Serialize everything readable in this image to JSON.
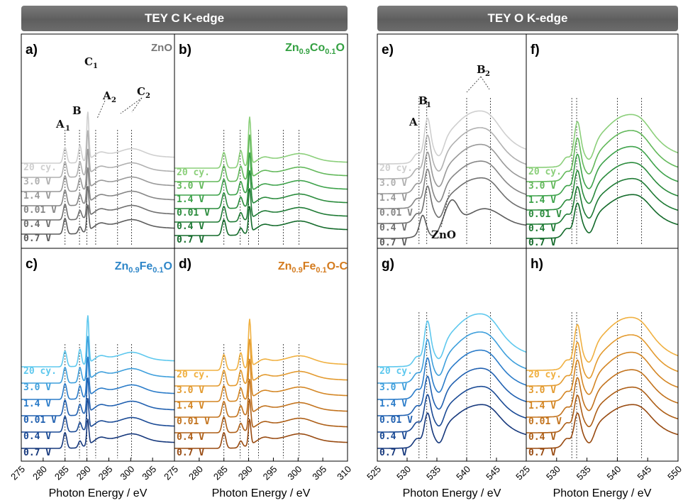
{
  "headers": {
    "left": "TEY C K-edge",
    "right": "TEY O K-edge"
  },
  "colors": {
    "grey": [
      "#cfcfcf",
      "#b0b0b0",
      "#999999",
      "#868686",
      "#6f6f6f",
      "#5c5c5c"
    ],
    "green": [
      "#8bcf7a",
      "#62b85a",
      "#3da24a",
      "#2a8b3c",
      "#1e7a34",
      "#136a2a"
    ],
    "blue": [
      "#5ec8ee",
      "#3e9fdc",
      "#2b7cc9",
      "#2060b0",
      "#1a4a95",
      "#16387c"
    ],
    "orange": [
      "#f0b040",
      "#e39a2e",
      "#d48624",
      "#c2721c",
      "#ad5e16",
      "#984a10"
    ],
    "title_green": "#33a041",
    "title_blue": "#2e86c8",
    "title_orange": "#d47b1e"
  },
  "axes": {
    "c_ticks": [
      "275",
      "280",
      "285",
      "290",
      "295",
      "300",
      "305"
    ],
    "c_ticks_last": [
      "275",
      "280",
      "285",
      "290",
      "295",
      "300",
      "305",
      "310"
    ],
    "o_ticks": [
      "525",
      "530",
      "535",
      "540",
      "545"
    ],
    "o_ticks_last": [
      "525",
      "530",
      "535",
      "540",
      "545",
      "550"
    ],
    "xlabel": "Photon Energy / eV"
  },
  "chart_data": [
    {
      "type": "line",
      "panel": "a)",
      "title": "ZnO",
      "xlim": [
        275,
        310
      ],
      "series": [
        {
          "name": "20 cy."
        },
        {
          "name": "3.0 V"
        },
        {
          "name": "1.4 V"
        },
        {
          "name": "0.01 V"
        },
        {
          "name": "0.4 V"
        },
        {
          "name": "0.7 V"
        }
      ],
      "annotations": [
        "A",
        "1",
        "B",
        "C",
        "1",
        "A",
        "2",
        "C",
        "2"
      ],
      "reference_lines_x": [
        285,
        288.3,
        290,
        292,
        297,
        300.2
      ]
    },
    {
      "type": "line",
      "panel": "b)",
      "title": "Zn0.9Co0.1O",
      "xlim": [
        275,
        310
      ],
      "series": [
        {
          "name": "20 cy."
        },
        {
          "name": "3.0 V"
        },
        {
          "name": "1.4 V"
        },
        {
          "name": "0.01 V"
        },
        {
          "name": "0.4 V"
        },
        {
          "name": "0.7 V"
        }
      ],
      "reference_lines_x": [
        285,
        288.3,
        290,
        292,
        297,
        300.2
      ]
    },
    {
      "type": "line",
      "panel": "c)",
      "title": "Zn0.9Fe0.1O",
      "xlim": [
        275,
        310
      ],
      "series": [
        {
          "name": "20 cy."
        },
        {
          "name": "3.0 V"
        },
        {
          "name": "1.4 V"
        },
        {
          "name": "0.01 V"
        },
        {
          "name": "0.4 V"
        },
        {
          "name": "0.7 V"
        }
      ],
      "reference_lines_x": [
        285,
        288.3,
        290,
        292,
        297,
        300.2
      ]
    },
    {
      "type": "line",
      "panel": "d)",
      "title": "Zn0.9Fe0.1O-C",
      "xlim": [
        275,
        310
      ],
      "series": [
        {
          "name": "20 cy."
        },
        {
          "name": "3.0 V"
        },
        {
          "name": "1.4 V"
        },
        {
          "name": "0.01 V"
        },
        {
          "name": "0.4 V"
        },
        {
          "name": "0.7 V"
        }
      ],
      "reference_lines_x": [
        285,
        288.3,
        290,
        292,
        297,
        300.2
      ]
    },
    {
      "type": "line",
      "panel": "e)",
      "xlim": [
        525,
        550
      ],
      "series": [
        {
          "name": "20 cy."
        },
        {
          "name": "3.0 V"
        },
        {
          "name": "1.4 V"
        },
        {
          "name": "0.01 V"
        },
        {
          "name": "0.4 V"
        },
        {
          "name": "0.7 V"
        }
      ],
      "annotations": [
        "A",
        "B",
        "1",
        "B",
        "2",
        "ZnO"
      ],
      "reference_lines_x": [
        532,
        533.3,
        540,
        544
      ]
    },
    {
      "type": "line",
      "panel": "f)",
      "xlim": [
        525,
        550
      ],
      "series": [
        {
          "name": "20 cy."
        },
        {
          "name": "3.0 V"
        },
        {
          "name": "1.4 V"
        },
        {
          "name": "0.01 V"
        },
        {
          "name": "0.4 V"
        },
        {
          "name": "0.7 V"
        }
      ],
      "reference_lines_x": [
        532.5,
        533.3,
        540,
        544
      ]
    },
    {
      "type": "line",
      "panel": "g)",
      "xlim": [
        525,
        550
      ],
      "series": [
        {
          "name": "20 cy."
        },
        {
          "name": "3.0 V"
        },
        {
          "name": "1.4 V"
        },
        {
          "name": "0.01 V"
        },
        {
          "name": "0.4 V"
        },
        {
          "name": "0.7 V"
        }
      ],
      "reference_lines_x": [
        532,
        533.3,
        540,
        544
      ]
    },
    {
      "type": "line",
      "panel": "h)",
      "xlim": [
        525,
        550
      ],
      "series": [
        {
          "name": "20 cy."
        },
        {
          "name": "3.0 V"
        },
        {
          "name": "1.4 V"
        },
        {
          "name": "0.01 V"
        },
        {
          "name": "0.4 V"
        },
        {
          "name": "0.7 V"
        }
      ],
      "reference_lines_x": [
        532.5,
        533.3,
        540,
        544
      ]
    }
  ]
}
